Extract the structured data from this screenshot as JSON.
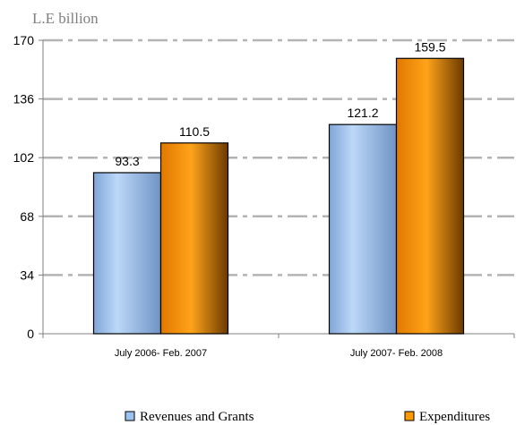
{
  "chart_data": {
    "type": "bar",
    "unit_label": "L.E billion",
    "categories": [
      "July 2006- Feb. 2007",
      "July 2007- Feb. 2008"
    ],
    "series": [
      {
        "name": "Revenues and Grants",
        "values": [
          93.3,
          121.2
        ],
        "value_labels": [
          "93.3",
          "121.2"
        ],
        "color": "#9cc3f0"
      },
      {
        "name": "Expenditures",
        "values": [
          110.5,
          159.5
        ],
        "value_labels": [
          "110.5",
          "159.5"
        ],
        "color": "#ff9900"
      }
    ],
    "ylim": [
      0,
      170
    ],
    "yticks": [
      "0",
      "34",
      "68",
      "102",
      "136",
      "170"
    ],
    "grid": true,
    "legend_position": "bottom"
  }
}
